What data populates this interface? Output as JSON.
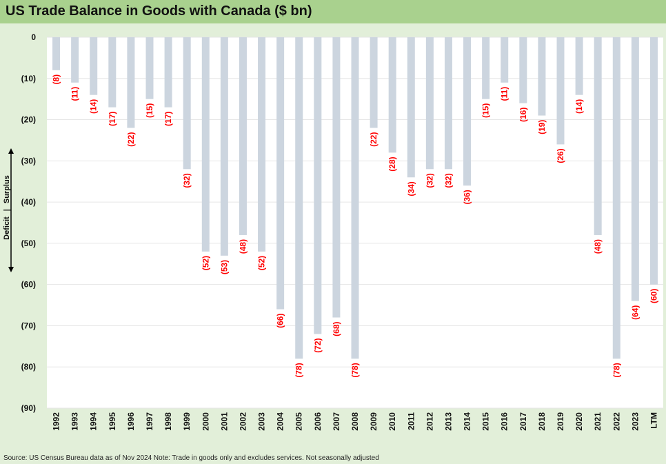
{
  "title": "US Trade Balance in Goods with Canada ($ bn)",
  "source": "Source: US Census Bureau data as of Nov 2024 Note: Trade in goods only and excludes services. Not seasonally adjusted",
  "axis_note": {
    "left": "Deficit",
    "divider": "|",
    "right": "Surplus"
  },
  "colors": {
    "title_bar": "#a9d18e",
    "bar": "#ccd5df",
    "label": "#ff0000",
    "background": "#e2efd9",
    "plot_bg": "#ffffff"
  },
  "chart_data": {
    "type": "bar",
    "title": "US Trade Balance in Goods with Canada ($ bn)",
    "categories": [
      "1992",
      "1993",
      "1994",
      "1995",
      "1996",
      "1997",
      "1998",
      "1999",
      "2000",
      "2001",
      "2002",
      "2003",
      "2004",
      "2005",
      "2006",
      "2007",
      "2008",
      "2009",
      "2010",
      "2011",
      "2012",
      "2013",
      "2014",
      "2015",
      "2016",
      "2017",
      "2018",
      "2019",
      "2020",
      "2021",
      "2022",
      "2023",
      "LTM"
    ],
    "values": [
      -8,
      -11,
      -14,
      -17,
      -22,
      -15,
      -17,
      -32,
      -52,
      -53,
      -48,
      -52,
      -66,
      -78,
      -72,
      -68,
      -78,
      -22,
      -28,
      -34,
      -32,
      -32,
      -36,
      -15,
      -11,
      -16,
      -19,
      -26,
      -14,
      -48,
      -78,
      -64,
      -60
    ],
    "data_labels": [
      "(8)",
      "(11)",
      "(14)",
      "(17)",
      "(22)",
      "(15)",
      "(17)",
      "(32)",
      "(52)",
      "(53)",
      "(48)",
      "(52)",
      "(66)",
      "(78)",
      "(72)",
      "(68)",
      "(78)",
      "(22)",
      "(28)",
      "(34)",
      "(32)",
      "(32)",
      "(36)",
      "(15)",
      "(11)",
      "(16)",
      "(19)",
      "(26)",
      "(14)",
      "(48)",
      "(78)",
      "(64)",
      "(60)"
    ],
    "yticks": [
      0,
      -10,
      -20,
      -30,
      -40,
      -50,
      -60,
      -70,
      -80,
      -90
    ],
    "ytick_labels": [
      "0",
      "(10)",
      "(20)",
      "(30)",
      "(40)",
      "(50)",
      "(60)",
      "(70)",
      "(80)",
      "(90)"
    ],
    "ylim": [
      -90,
      0
    ],
    "grid": true,
    "xlabel": "",
    "ylabel": ""
  }
}
